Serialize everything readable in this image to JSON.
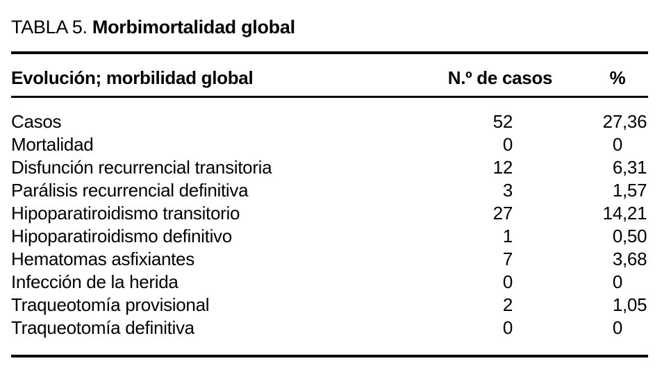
{
  "page": {
    "background": "#ffffff",
    "text_color": "#000000",
    "rule_color": "#000000"
  },
  "title": {
    "prefix": "TABLA 5.",
    "text": "Morbimortalidad global"
  },
  "table": {
    "header": {
      "evolution": "Evolución; morbilidad global",
      "cases": "N.º de casos",
      "percent": "%"
    },
    "rows": [
      {
        "label": "Casos",
        "cases": "52",
        "pct_int": "27",
        "pct_dec": ",36"
      },
      {
        "label": "Mortalidad",
        "cases": "0",
        "pct_int": "0",
        "pct_dec": ""
      },
      {
        "label": "Disfunción recurrencial transitoria",
        "cases": "12",
        "pct_int": "6",
        "pct_dec": ",31"
      },
      {
        "label": "Parálisis recurrencial definitiva",
        "cases": "3",
        "pct_int": "1",
        "pct_dec": ",57"
      },
      {
        "label": "Hipoparatiroidismo transitorio",
        "cases": "27",
        "pct_int": "14",
        "pct_dec": ",21"
      },
      {
        "label": "Hipoparatiroidismo definitivo",
        "cases": "1",
        "pct_int": "0",
        "pct_dec": ",50"
      },
      {
        "label": "Hematomas asfixiantes",
        "cases": "7",
        "pct_int": "3",
        "pct_dec": ",68"
      },
      {
        "label": "Infección de la herida",
        "cases": "0",
        "pct_int": "0",
        "pct_dec": ""
      },
      {
        "label": "Traqueotomía provisional",
        "cases": "2",
        "pct_int": "1",
        "pct_dec": ",05"
      },
      {
        "label": "Traqueotomía definitiva",
        "cases": "0",
        "pct_int": "0",
        "pct_dec": ""
      }
    ]
  },
  "chart_data": {
    "type": "table",
    "title": "TABLA 5. Morbimortalidad global",
    "columns": [
      "Evolución; morbilidad global",
      "N.º de casos",
      "%"
    ],
    "rows": [
      [
        "Casos",
        52,
        "27,36"
      ],
      [
        "Mortalidad",
        0,
        "0"
      ],
      [
        "Disfunción recurrencial transitoria",
        12,
        "6,31"
      ],
      [
        "Parálisis recurrencial definitiva",
        3,
        "1,57"
      ],
      [
        "Hipoparatiroidismo transitorio",
        27,
        "14,21"
      ],
      [
        "Hipoparatiroidismo definitivo",
        1,
        "0,50"
      ],
      [
        "Hematomas asfixiantes",
        7,
        "3,68"
      ],
      [
        "Infección de la herida",
        0,
        "0"
      ],
      [
        "Traqueotomía provisional",
        2,
        "1,05"
      ],
      [
        "Traqueotomía definitiva",
        0,
        "0"
      ]
    ]
  }
}
